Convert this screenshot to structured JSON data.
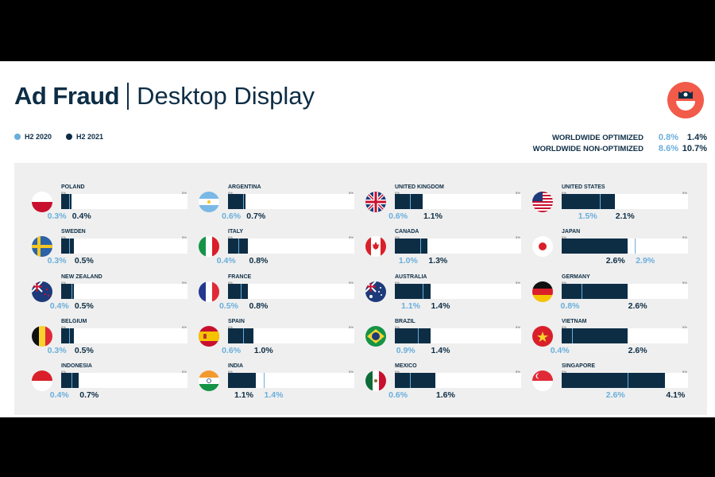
{
  "title": {
    "bold": "Ad Fraud",
    "light": "Desktop Display"
  },
  "legend": {
    "h2020": "H2 2020",
    "h2021": "H2 2021"
  },
  "colors": {
    "h2020": "#6aaedb",
    "h2021": "#0d2d45",
    "logo": "#f25a4a",
    "panel": "#efefef"
  },
  "worldwide": [
    {
      "label": "WORLDWIDE OPTIMIZED",
      "h2020": "0.8%",
      "h2021": "1.4%"
    },
    {
      "label": "WORLDWIDE NON-OPTIMIZED",
      "h2020": "8.6%",
      "h2021": "10.7%"
    }
  ],
  "axis": {
    "min_label": "0%",
    "max_label": "5%"
  },
  "chart_data": {
    "type": "bar",
    "title": "Ad Fraud | Desktop Display",
    "xlim": [
      0,
      5
    ],
    "unit": "%",
    "series_names": [
      "H2 2020",
      "H2 2021"
    ],
    "countries": [
      {
        "name": "POLAND",
        "flag": "pl",
        "h2020": 0.3,
        "h2021": 0.4
      },
      {
        "name": "SWEDEN",
        "flag": "se",
        "h2020": 0.3,
        "h2021": 0.5
      },
      {
        "name": "NEW ZEALAND",
        "flag": "nz",
        "h2020": 0.4,
        "h2021": 0.5
      },
      {
        "name": "BELGIUM",
        "flag": "be",
        "h2020": 0.3,
        "h2021": 0.5
      },
      {
        "name": "INDONESIA",
        "flag": "id",
        "h2020": 0.4,
        "h2021": 0.7
      },
      {
        "name": "ARGENTINA",
        "flag": "ar",
        "h2020": 0.6,
        "h2021": 0.7
      },
      {
        "name": "ITALY",
        "flag": "it",
        "h2020": 0.4,
        "h2021": 0.8
      },
      {
        "name": "FRANCE",
        "flag": "fr",
        "h2020": 0.5,
        "h2021": 0.8
      },
      {
        "name": "SPAIN",
        "flag": "es",
        "h2020": 0.6,
        "h2021": 1.0
      },
      {
        "name": "INDIA",
        "flag": "in",
        "h2020": 1.4,
        "h2021": 1.1
      },
      {
        "name": "UNITED KINGDOM",
        "flag": "gb",
        "h2020": 0.6,
        "h2021": 1.1
      },
      {
        "name": "CANADA",
        "flag": "ca",
        "h2020": 1.0,
        "h2021": 1.3
      },
      {
        "name": "AUSTRALIA",
        "flag": "au",
        "h2020": 1.1,
        "h2021": 1.4
      },
      {
        "name": "BRAZIL",
        "flag": "br",
        "h2020": 0.9,
        "h2021": 1.4
      },
      {
        "name": "MEXICO",
        "flag": "mx",
        "h2020": 0.6,
        "h2021": 1.6
      },
      {
        "name": "UNITED STATES",
        "flag": "us",
        "h2020": 1.5,
        "h2021": 2.1
      },
      {
        "name": "JAPAN",
        "flag": "jp",
        "h2020": 2.9,
        "h2021": 2.6
      },
      {
        "name": "GERMANY",
        "flag": "de",
        "h2020": 0.8,
        "h2021": 2.6
      },
      {
        "name": "VIETNAM",
        "flag": "vn",
        "h2020": 0.4,
        "h2021": 2.6
      },
      {
        "name": "SINGAPORE",
        "flag": "sg",
        "h2020": 2.6,
        "h2021": 4.1
      }
    ]
  }
}
